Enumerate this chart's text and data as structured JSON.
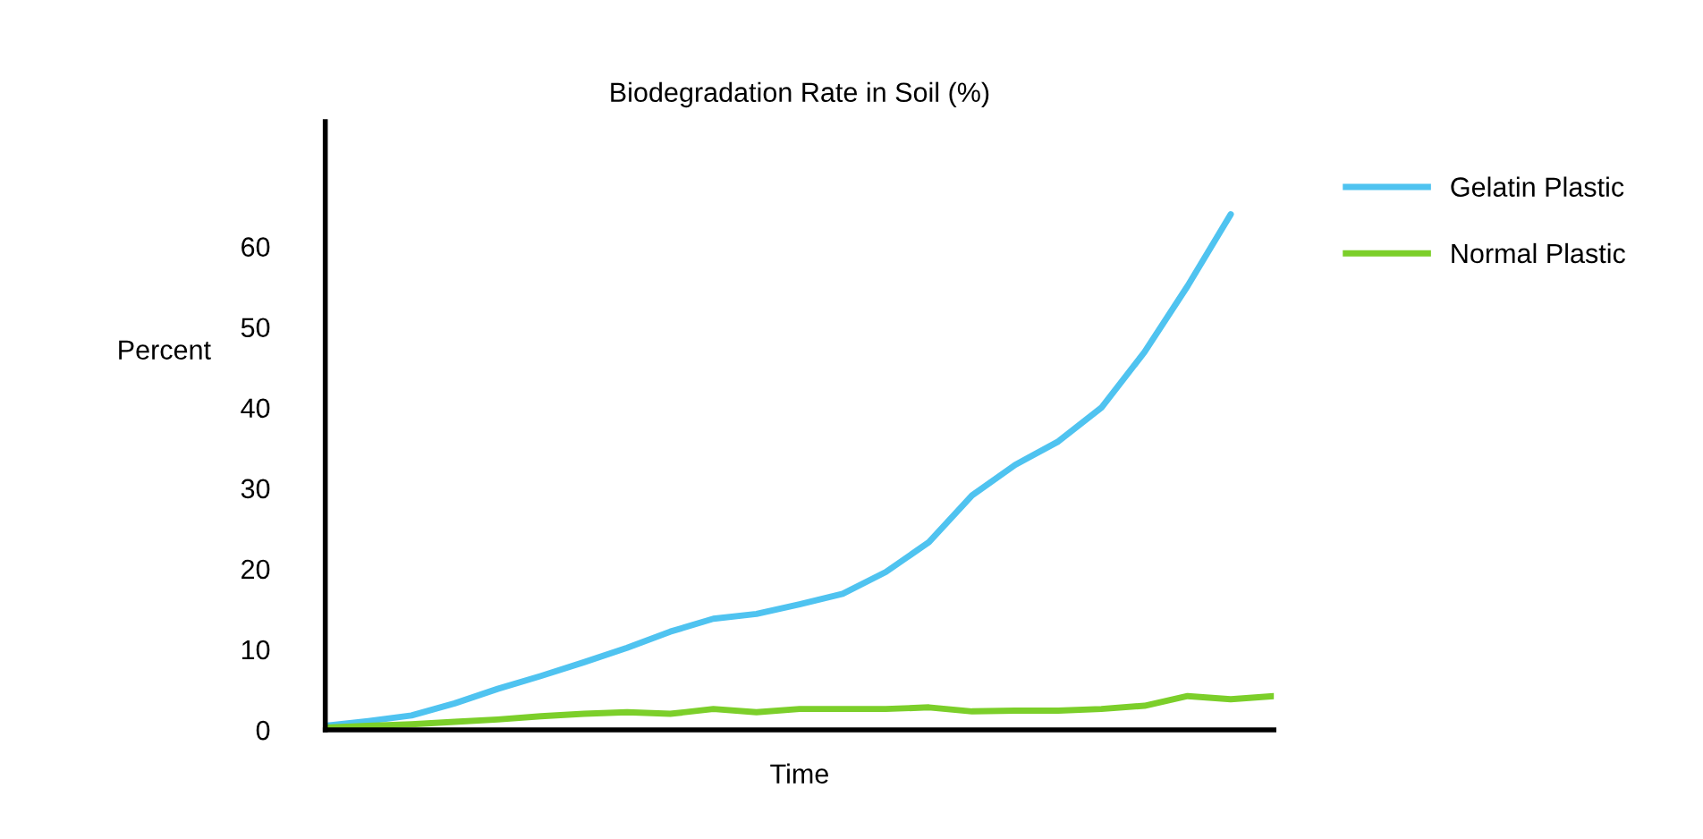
{
  "chart_data": {
    "type": "line",
    "title": "Biodegradation Rate in Soil (%)",
    "xlabel": "Time",
    "ylabel": "Percent",
    "categories": [
      null,
      null,
      null,
      null,
      null,
      null,
      null,
      null,
      null,
      null,
      null,
      null,
      null,
      null,
      null,
      null,
      null,
      null,
      null,
      null,
      null,
      null,
      null
    ],
    "series": [
      {
        "name": "Gelatin Plastic",
        "color": "#4fc3f0",
        "values": [
          0.5,
          1.1,
          1.8,
          3.3,
          5.1,
          6.7,
          8.4,
          10.2,
          12.2,
          13.8,
          14.4,
          15.6,
          16.9,
          19.6,
          23.3,
          29.1,
          32.9,
          35.8,
          40,
          46.9,
          55.1,
          64,
          null
        ]
      },
      {
        "name": "Normal Plastic",
        "color": "#7ccf2a",
        "values": [
          0.3,
          0.5,
          0.7,
          1,
          1.3,
          1.7,
          2,
          2.2,
          2,
          2.6,
          2.2,
          2.6,
          2.6,
          2.6,
          2.8,
          2.3,
          2.4,
          2.4,
          2.6,
          3,
          4.2,
          3.8,
          4.2
        ]
      }
    ],
    "ylim": [
      0,
      75.5
    ],
    "yticks": [
      0,
      10,
      20,
      30,
      40,
      50,
      60
    ],
    "grid": false,
    "legend": "right",
    "marker": "none",
    "line_style": "solid"
  }
}
